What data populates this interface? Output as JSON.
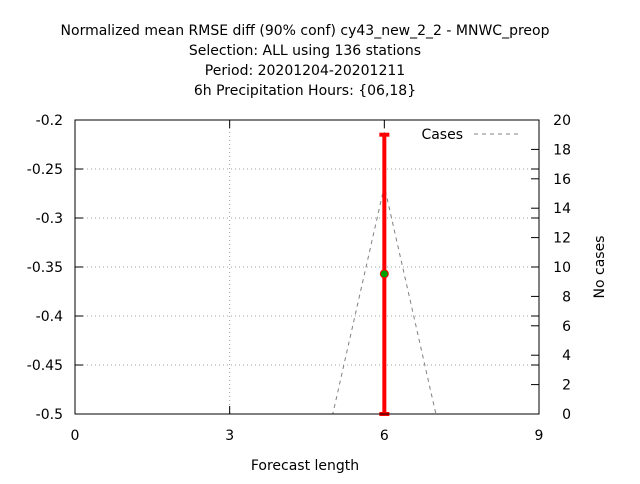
{
  "chart_data": {
    "type": "line",
    "title_lines": [
      "Normalized mean RMSE diff (90% conf) cy43_new_2_2 - MNWC_preop",
      "Selection: ALL using   136 stations",
      "Period: 20201204-20201211",
      "6h Precipitation   Hours: {06,18}"
    ],
    "xlabel": "Forecast length",
    "ylabel": "",
    "y2label": "No cases",
    "xlim": [
      0,
      9
    ],
    "ylim": [
      -0.5,
      -0.2
    ],
    "y2lim": [
      0,
      20
    ],
    "x_ticks": [
      0,
      3,
      6,
      9
    ],
    "y_ticks": [
      -0.5,
      -0.45,
      -0.4,
      -0.35,
      -0.3,
      -0.25,
      -0.2
    ],
    "y_tick_labels": [
      "-0.5",
      "-0.45",
      "-0.4",
      "-0.35",
      "-0.3",
      "-0.25",
      "-0.2"
    ],
    "y2_ticks": [
      0,
      2,
      4,
      6,
      8,
      10,
      12,
      14,
      16,
      18,
      20
    ],
    "grid": true,
    "legend": {
      "position": "top-right",
      "entries": [
        "Cases"
      ]
    },
    "series": [
      {
        "name": "Cases",
        "axis": "y2",
        "style": "dashed",
        "color": "#808080",
        "x": [
          0,
          1,
          2,
          3,
          4,
          5,
          6,
          7,
          8,
          9
        ],
        "values": [
          0,
          0,
          0,
          0,
          0,
          0,
          15.5,
          0,
          0,
          0
        ]
      },
      {
        "axis": "y",
        "style": "errorbar",
        "color": "#ff0000",
        "marker_color": "#00a000",
        "x": [
          6
        ],
        "values": [
          -0.357
        ],
        "lower": [
          -0.5
        ],
        "upper": [
          -0.215
        ]
      }
    ]
  }
}
